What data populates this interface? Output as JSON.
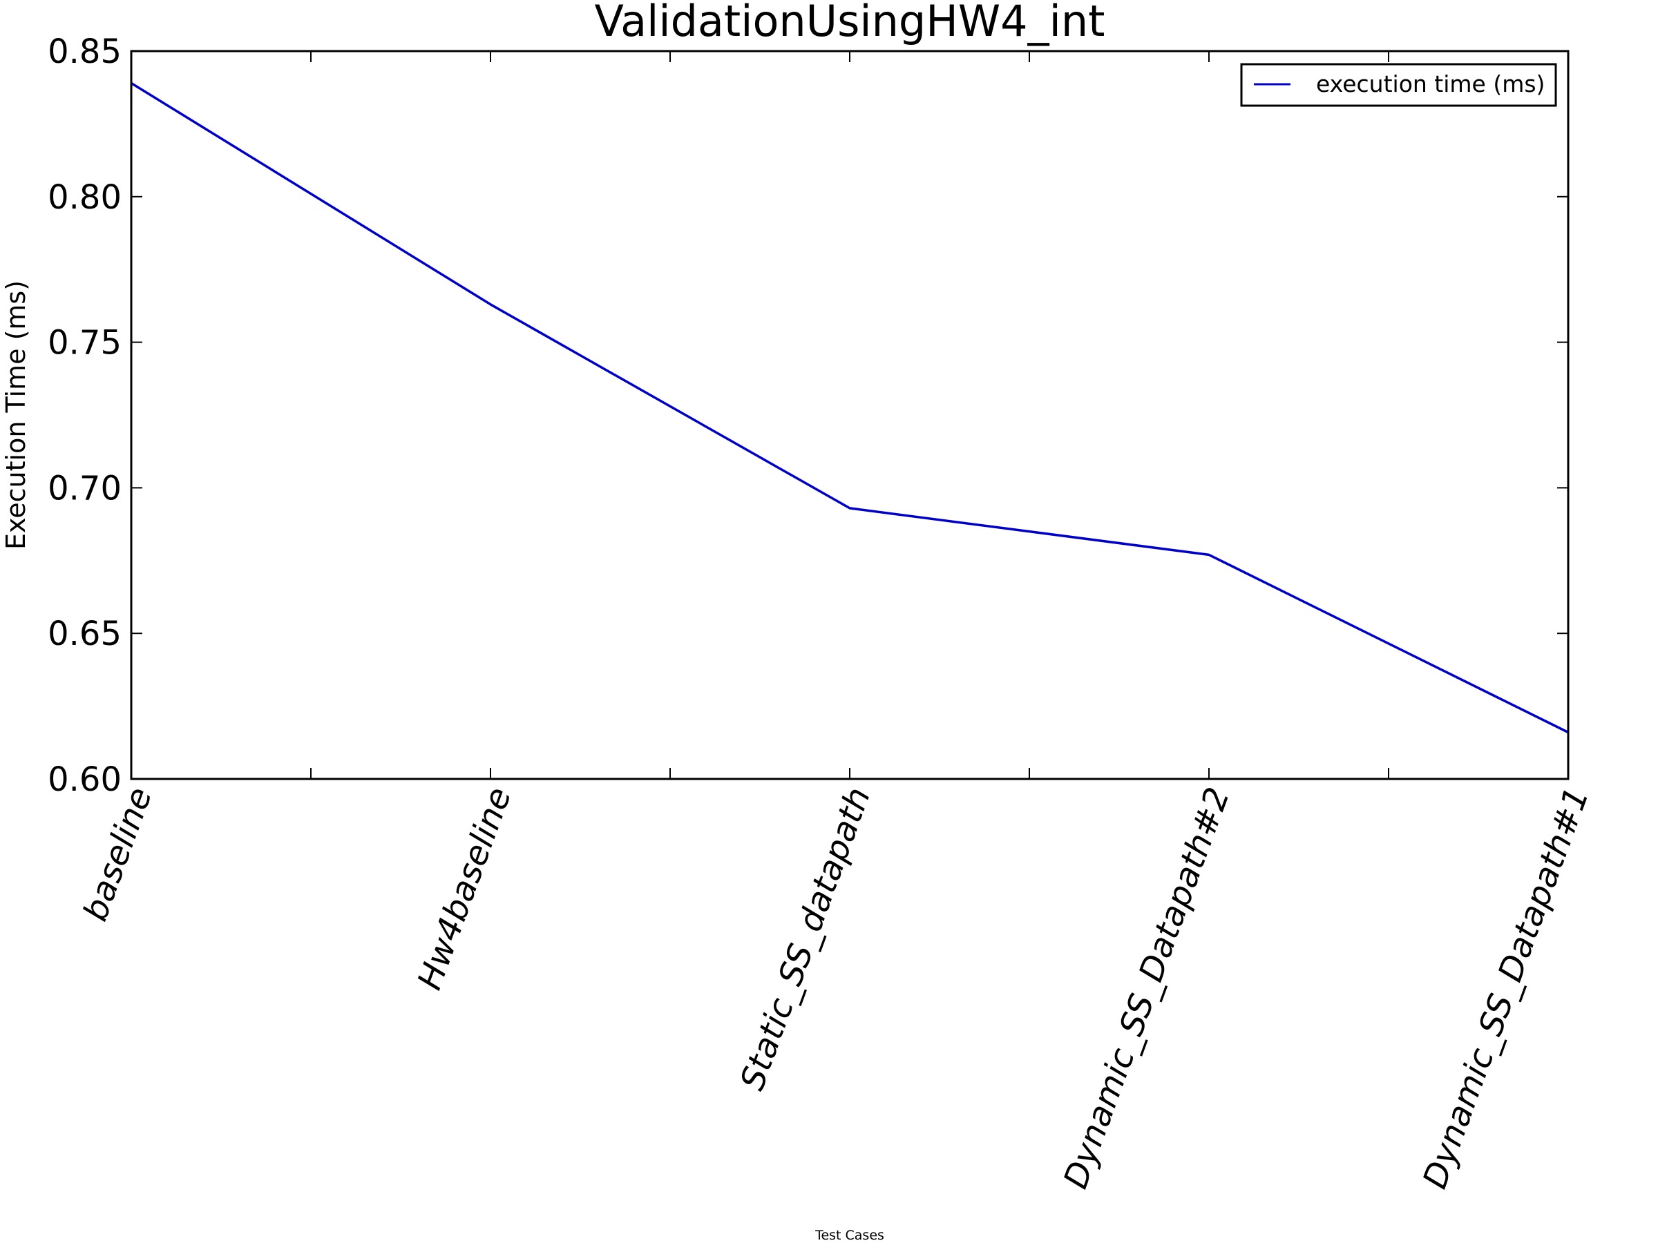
{
  "chart_data": {
    "type": "line",
    "title": "ValidationUsingHW4_int",
    "xlabel": "Test Cases",
    "ylabel": "Execution Time (ms)",
    "categories": [
      "baseline",
      "Hw4baseline",
      "Static_SS_datapath",
      "Dynamic_SS_Datapath#2",
      "Dynamic_SS_Datapath#1"
    ],
    "series": [
      {
        "name": "execution time (ms)",
        "values": [
          0.839,
          0.763,
          0.693,
          0.677,
          0.616
        ],
        "color": "#0000cc"
      }
    ],
    "ylim": [
      0.6,
      0.85
    ],
    "yticks": [
      "0.60",
      "0.65",
      "0.70",
      "0.75",
      "0.80",
      "0.85"
    ],
    "grid": false,
    "legend_position": "top-right"
  }
}
